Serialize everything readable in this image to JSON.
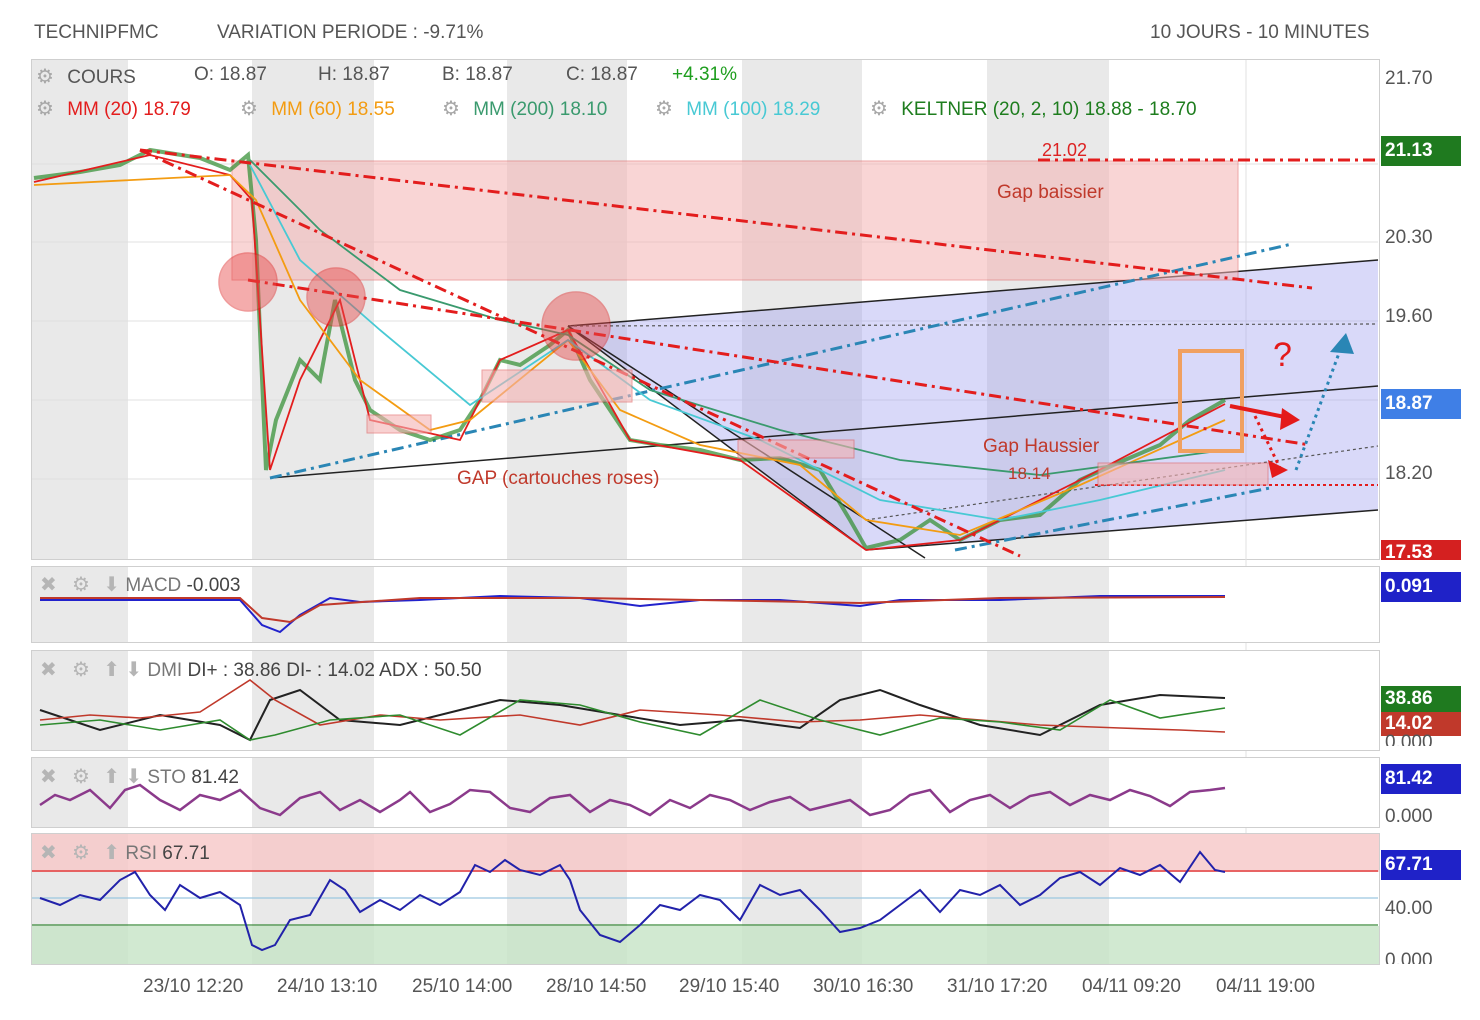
{
  "header": {
    "symbol": "TECHNIPFMC",
    "variation": "VARIATION PERIODE : -9.71%",
    "period": "10 JOURS - 10 MINUTES"
  },
  "main": {
    "cours": "COURS",
    "o": "O: 18.87",
    "h": "H: 18.87",
    "b": "B: 18.87",
    "c": "C: 18.87",
    "change": "+4.31%",
    "indicators": [
      {
        "name": "MM (20)",
        "value": "18.79",
        "color": "#e31d1d"
      },
      {
        "name": "MM (60)",
        "value": "18.55",
        "color": "#f39c12"
      },
      {
        "name": "MM (200)",
        "value": "18.10",
        "color": "#3a9a6e"
      },
      {
        "name": "MM (100)",
        "value": "18.29",
        "color": "#48c9d4"
      },
      {
        "name": "KELTNER (20, 2, 10)",
        "value": "18.88 - 18.70",
        "color": "#1e7d1e"
      }
    ],
    "annotations": {
      "gap_baissier": "Gap baissier",
      "gap_haussier": "Gap Haussier",
      "gap_cartouches": "GAP (cartouches roses)",
      "level_2102": "21.02",
      "level_1814": "18.14",
      "question": "?"
    },
    "y_ticks": [
      "21.70",
      "20.30",
      "19.60",
      "18.20"
    ],
    "badges": [
      {
        "label": "21.13",
        "color": "#1f7a1f"
      },
      {
        "label": "18.87",
        "color": "#3f7fe6"
      },
      {
        "label": "17.53",
        "color": "#d42020"
      }
    ]
  },
  "macd": {
    "label": "MACD",
    "value": "-0.003",
    "badge": "0.091",
    "badge_color": "#1f22c8"
  },
  "dmi": {
    "label": "DMI",
    "text": "DI+ : 38.86 DI- : 14.02 ADX : 50.50",
    "badge_plus": "38.86",
    "badge_minus": "14.02",
    "tick": "0.000",
    "color_plus": "#1f7a1f",
    "color_minus": "#c0392b"
  },
  "sto": {
    "label": "STO",
    "value": "81.42",
    "badge": "81.42",
    "tick": "0.000",
    "badge_color": "#1f22c8"
  },
  "rsi": {
    "label": "RSI",
    "value": "67.71",
    "badge": "67.71",
    "ticks": [
      "40.00",
      "0.000"
    ],
    "badge_color": "#1f22c8"
  },
  "x_ticks": [
    "23/10 12:20",
    "24/10 13:10",
    "25/10 14:00",
    "28/10 14:50",
    "29/10 15:40",
    "30/10 16:30",
    "31/10 17:20",
    "04/11 09:20",
    "04/11 19:00"
  ],
  "chart_data": {
    "type": "line",
    "title": "TECHNIPFMC",
    "xlabel": "",
    "ylabel": "",
    "x": [
      "23/10 12:20",
      "24/10 13:10",
      "25/10 14:00",
      "28/10 14:50",
      "29/10 15:40",
      "30/10 16:30",
      "31/10 17:20",
      "04/11 09:20",
      "04/11 19:00"
    ],
    "ylim": [
      17.53,
      21.7
    ],
    "series": [
      {
        "name": "COURS",
        "values": [
          20.95,
          18.1,
          18.45,
          19.45,
          18.3,
          17.6,
          17.8,
          18.6,
          18.87
        ]
      }
    ],
    "macd": -0.003,
    "dmi": {
      "di_plus": 38.86,
      "di_minus": 14.02,
      "adx": 50.5
    },
    "sto": 81.42,
    "rsi": 67.71
  }
}
